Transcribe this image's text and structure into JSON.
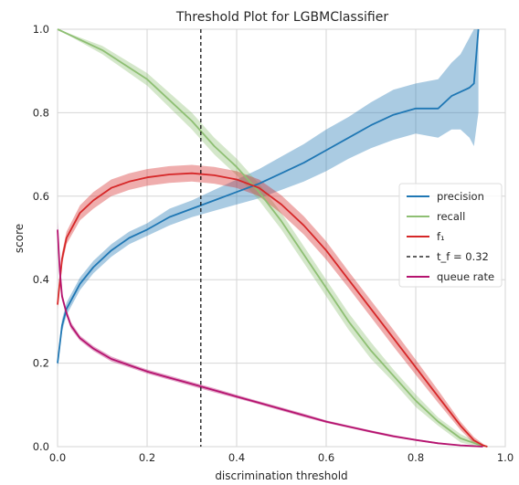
{
  "chart_data": {
    "type": "line",
    "title": "Threshold Plot for LGBMClassifier",
    "xlabel": "discrimination threshold",
    "ylabel": "score",
    "xlim": [
      0.0,
      1.0
    ],
    "ylim": [
      0.0,
      1.0
    ],
    "xticks": [
      "0.0",
      "0.2",
      "0.4",
      "0.6",
      "0.8",
      "1.0"
    ],
    "yticks": [
      "0.0",
      "0.2",
      "0.4",
      "0.6",
      "0.8",
      "1.0"
    ],
    "grid": true,
    "legend_position": "center-right",
    "threshold_line": {
      "x": 0.32,
      "label": "t_f = 0.32",
      "style": "dashed",
      "color": "#000000"
    },
    "series": [
      {
        "name": "precision",
        "color": "#1f77b4",
        "x": [
          0.0,
          0.01,
          0.02,
          0.05,
          0.08,
          0.12,
          0.16,
          0.2,
          0.25,
          0.3,
          0.35,
          0.4,
          0.45,
          0.5,
          0.55,
          0.6,
          0.65,
          0.7,
          0.75,
          0.8,
          0.85,
          0.88,
          0.9,
          0.92,
          0.93,
          0.94
        ],
        "y": [
          0.2,
          0.29,
          0.33,
          0.39,
          0.43,
          0.47,
          0.5,
          0.52,
          0.55,
          0.57,
          0.59,
          0.61,
          0.63,
          0.655,
          0.68,
          0.71,
          0.74,
          0.77,
          0.795,
          0.81,
          0.81,
          0.84,
          0.85,
          0.86,
          0.87,
          1.0
        ],
        "band": [
          0.01,
          0.015,
          0.015,
          0.015,
          0.015,
          0.015,
          0.015,
          0.015,
          0.02,
          0.02,
          0.025,
          0.03,
          0.035,
          0.04,
          0.045,
          0.05,
          0.05,
          0.055,
          0.06,
          0.06,
          0.07,
          0.08,
          0.09,
          0.12,
          0.15,
          0.2
        ]
      },
      {
        "name": "recall",
        "color": "#8ebf73",
        "x": [
          0.0,
          0.1,
          0.2,
          0.3,
          0.35,
          0.4,
          0.45,
          0.5,
          0.55,
          0.6,
          0.65,
          0.7,
          0.75,
          0.8,
          0.85,
          0.9,
          0.94,
          0.96
        ],
        "y": [
          1.0,
          0.95,
          0.88,
          0.78,
          0.72,
          0.67,
          0.61,
          0.54,
          0.46,
          0.38,
          0.3,
          0.23,
          0.17,
          0.11,
          0.06,
          0.02,
          0.005,
          0.0
        ],
        "band": [
          0.0,
          0.01,
          0.015,
          0.02,
          0.02,
          0.02,
          0.02,
          0.02,
          0.02,
          0.02,
          0.02,
          0.02,
          0.015,
          0.015,
          0.01,
          0.01,
          0.005,
          0.0
        ]
      },
      {
        "name": "f₁",
        "color": "#d62728",
        "x": [
          0.0,
          0.01,
          0.02,
          0.05,
          0.08,
          0.12,
          0.16,
          0.2,
          0.25,
          0.3,
          0.35,
          0.4,
          0.45,
          0.5,
          0.55,
          0.6,
          0.65,
          0.7,
          0.75,
          0.8,
          0.85,
          0.9,
          0.93,
          0.95,
          0.96
        ],
        "y": [
          0.34,
          0.45,
          0.5,
          0.56,
          0.59,
          0.62,
          0.635,
          0.645,
          0.652,
          0.655,
          0.65,
          0.64,
          0.62,
          0.58,
          0.53,
          0.47,
          0.4,
          0.33,
          0.26,
          0.19,
          0.12,
          0.05,
          0.015,
          0.003,
          0.0
        ],
        "band": [
          0.01,
          0.015,
          0.015,
          0.018,
          0.02,
          0.02,
          0.02,
          0.02,
          0.02,
          0.02,
          0.02,
          0.02,
          0.02,
          0.022,
          0.022,
          0.022,
          0.02,
          0.02,
          0.02,
          0.018,
          0.015,
          0.01,
          0.008,
          0.004,
          0.0
        ]
      },
      {
        "name": "queue rate",
        "color": "#b5136f",
        "x": [
          0.0,
          0.005,
          0.01,
          0.02,
          0.03,
          0.05,
          0.08,
          0.12,
          0.16,
          0.2,
          0.25,
          0.3,
          0.35,
          0.4,
          0.45,
          0.5,
          0.55,
          0.6,
          0.65,
          0.7,
          0.75,
          0.8,
          0.85,
          0.9,
          0.95
        ],
        "y": [
          0.52,
          0.42,
          0.36,
          0.32,
          0.29,
          0.26,
          0.235,
          0.21,
          0.195,
          0.18,
          0.165,
          0.15,
          0.135,
          0.12,
          0.105,
          0.09,
          0.075,
          0.06,
          0.048,
          0.036,
          0.025,
          0.016,
          0.008,
          0.003,
          0.0
        ],
        "band": [
          0.02,
          0.015,
          0.01,
          0.008,
          0.008,
          0.006,
          0.006,
          0.006,
          0.005,
          0.005,
          0.005,
          0.005,
          0.005,
          0.004,
          0.004,
          0.004,
          0.004,
          0.003,
          0.003,
          0.003,
          0.003,
          0.002,
          0.002,
          0.001,
          0.0
        ]
      }
    ]
  }
}
